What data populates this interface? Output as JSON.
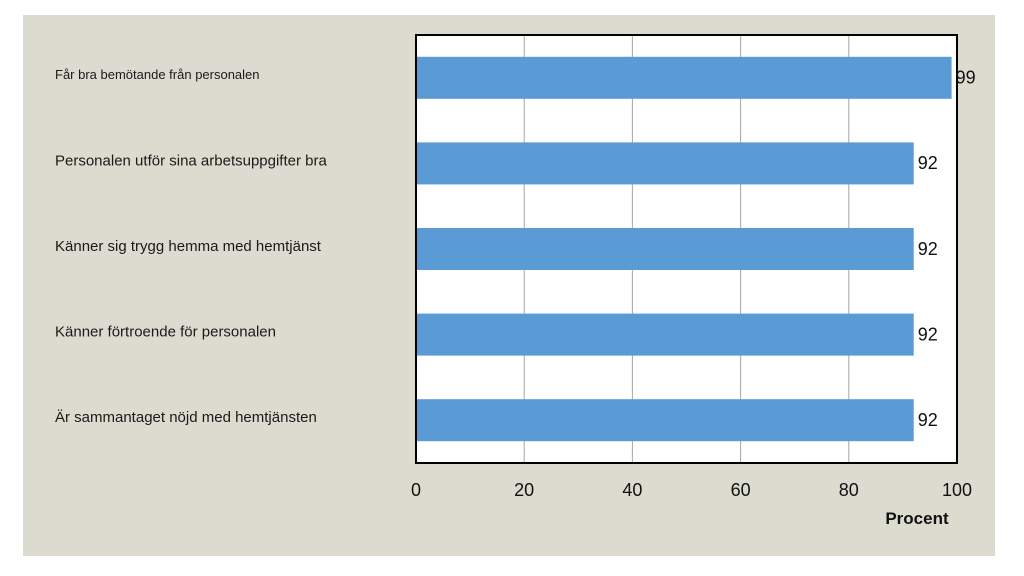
{
  "colors": {
    "panel_bg": "#dcdbd0",
    "plot_bg": "#ffffff",
    "bar": "#5b9bd5",
    "grid": "#a6a6a6",
    "frame": "#000000"
  },
  "chart_data": {
    "type": "bar",
    "orientation": "horizontal",
    "categories": [
      "Får bra bemötande från personalen",
      "Personalen utför sina arbetsuppgifter bra",
      "Känner sig trygg hemma med hemtjänst",
      "Känner förtroende för personalen",
      "Är sammantaget nöjd med hemtjänsten"
    ],
    "values": [
      99,
      92,
      92,
      92,
      92
    ],
    "value_labels": [
      "99",
      "92",
      "92",
      "92",
      "92"
    ],
    "xlabel": "Procent",
    "xlim": [
      0,
      100
    ],
    "ticks": [
      0,
      20,
      40,
      60,
      80,
      100
    ],
    "tick_labels": [
      "0",
      "20",
      "40",
      "60",
      "80",
      "100"
    ],
    "grid": "vertical",
    "legend": "none"
  }
}
